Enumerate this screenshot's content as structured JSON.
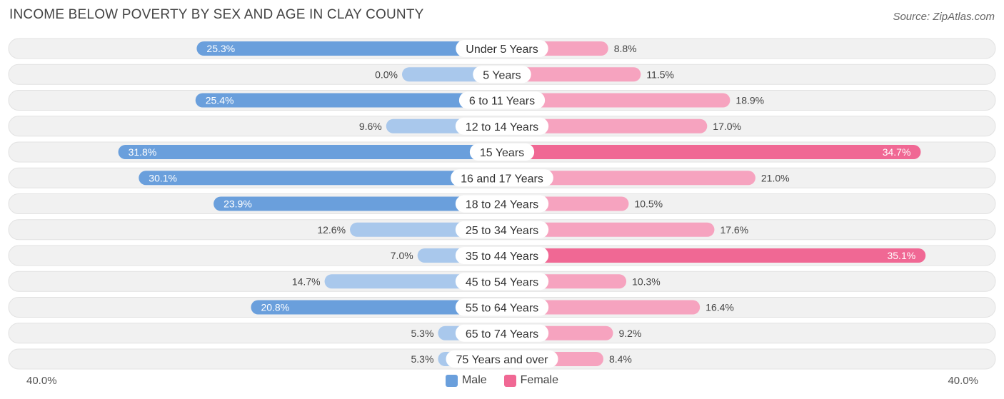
{
  "header": {
    "title": "INCOME BELOW POVERTY BY SEX AND AGE IN CLAY COUNTY",
    "source": "Source: ZipAtlas.com"
  },
  "axis": {
    "left_label": "40.0%",
    "right_label": "40.0%"
  },
  "legend": {
    "male_label": "Male",
    "female_label": "Female"
  },
  "colors": {
    "male_strong": "#6a9fdc",
    "male_light": "#a9c8ec",
    "female_strong": "#f06894",
    "female_light": "#f6a3bf",
    "row_bg": "#f0f0f0"
  },
  "chart_data": {
    "type": "bar",
    "orientation": "horizontal-diverging",
    "title": "INCOME BELOW POVERTY BY SEX AND AGE IN CLAY COUNTY",
    "xlim": [
      -40,
      40
    ],
    "categories": [
      "Under 5 Years",
      "5 Years",
      "6 to 11 Years",
      "12 to 14 Years",
      "15 Years",
      "16 and 17 Years",
      "18 to 24 Years",
      "25 to 34 Years",
      "35 to 44 Years",
      "45 to 54 Years",
      "55 to 64 Years",
      "65 to 74 Years",
      "75 Years and over"
    ],
    "series": [
      {
        "name": "Male",
        "values": [
          25.3,
          0.0,
          25.4,
          9.6,
          31.8,
          30.1,
          23.9,
          12.6,
          7.0,
          14.7,
          20.8,
          5.3,
          5.3
        ],
        "labels": [
          "25.3%",
          "0.0%",
          "25.4%",
          "9.6%",
          "31.8%",
          "30.1%",
          "23.9%",
          "12.6%",
          "7.0%",
          "14.7%",
          "20.8%",
          "5.3%",
          "5.3%"
        ]
      },
      {
        "name": "Female",
        "values": [
          8.8,
          11.5,
          18.9,
          17.0,
          34.7,
          21.0,
          10.5,
          17.6,
          35.1,
          10.3,
          16.4,
          9.2,
          8.4
        ],
        "labels": [
          "8.8%",
          "11.5%",
          "18.9%",
          "17.0%",
          "34.7%",
          "21.0%",
          "10.5%",
          "17.6%",
          "35.1%",
          "10.3%",
          "16.4%",
          "9.2%",
          "8.4%"
        ]
      }
    ],
    "legend": "bottom-center"
  }
}
